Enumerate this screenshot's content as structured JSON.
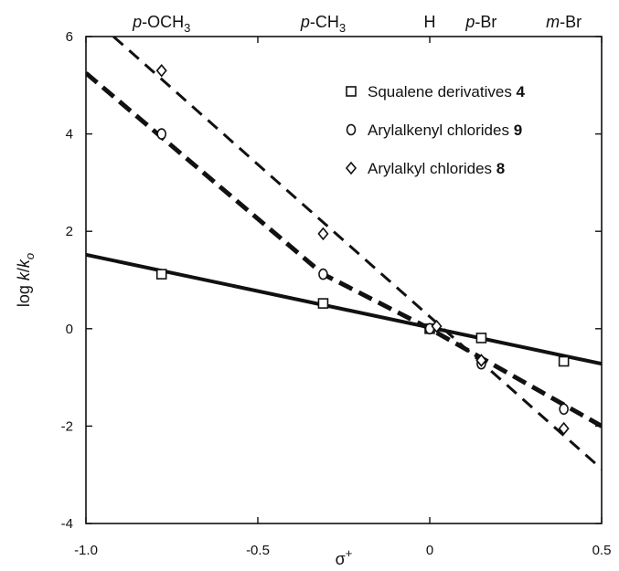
{
  "chart_data": {
    "type": "scatter",
    "title": "",
    "xlabel": "σ+",
    "ylabel": "log k/ko",
    "xlim": [
      -1.0,
      0.5
    ],
    "ylim": [
      -4,
      6
    ],
    "x_ticks": [
      -1.0,
      -0.5,
      0,
      0.5
    ],
    "x_tick_labels": [
      "-1.0",
      "-0.5",
      "0",
      "0.5"
    ],
    "y_ticks": [
      -4,
      -2,
      0,
      2,
      4,
      6
    ],
    "y_tick_labels": [
      "-4",
      "-2",
      "0",
      "2",
      "4",
      "6"
    ],
    "grid": false,
    "legend_position": "top-right",
    "top_labels": [
      {
        "base": "p",
        "rest": "-OCH",
        "sub": "3",
        "x": -0.78
      },
      {
        "base": "p",
        "rest": "-CH",
        "sub": "3",
        "x": -0.31
      },
      {
        "base": "",
        "rest": "H",
        "sub": "",
        "x": 0
      },
      {
        "base": "p",
        "rest": "-Br",
        "sub": "",
        "x": 0.15
      },
      {
        "base": "m",
        "rest": "-Br",
        "sub": "",
        "x": 0.39
      }
    ],
    "series": [
      {
        "name": "Squalene derivatives",
        "name_bold": "4",
        "marker": "square",
        "line_style": "solid",
        "points": [
          [
            -0.78,
            1.12
          ],
          [
            -0.31,
            0.52
          ],
          [
            0.0,
            0.0
          ],
          [
            0.15,
            -0.19
          ],
          [
            0.39,
            -0.67
          ]
        ],
        "fit_line": [
          [
            -1.0,
            1.52
          ],
          [
            0.5,
            -0.72
          ]
        ]
      },
      {
        "name": "Arylalkenyl chlorides",
        "name_bold": "9",
        "marker": "circle",
        "line_style": "dashed-thick",
        "points": [
          [
            -0.78,
            4.0
          ],
          [
            -0.31,
            1.12
          ],
          [
            0.0,
            0.0
          ],
          [
            0.15,
            -0.72
          ],
          [
            0.39,
            -1.65
          ]
        ],
        "fit_line": [
          [
            -1.0,
            5.25
          ],
          [
            -0.31,
            1.12
          ],
          [
            0.0,
            0.0
          ],
          [
            0.5,
            -2.0
          ]
        ]
      },
      {
        "name": "Arylalkyl chlorides",
        "name_bold": "8",
        "marker": "diamond",
        "line_style": "dashed",
        "points": [
          [
            -0.78,
            5.3
          ],
          [
            -0.31,
            1.95
          ],
          [
            0.02,
            0.05
          ],
          [
            0.15,
            -0.65
          ],
          [
            0.39,
            -2.05
          ]
        ],
        "fit_line": [
          [
            -0.92,
            6.0
          ],
          [
            0.5,
            -2.88
          ]
        ]
      }
    ]
  }
}
